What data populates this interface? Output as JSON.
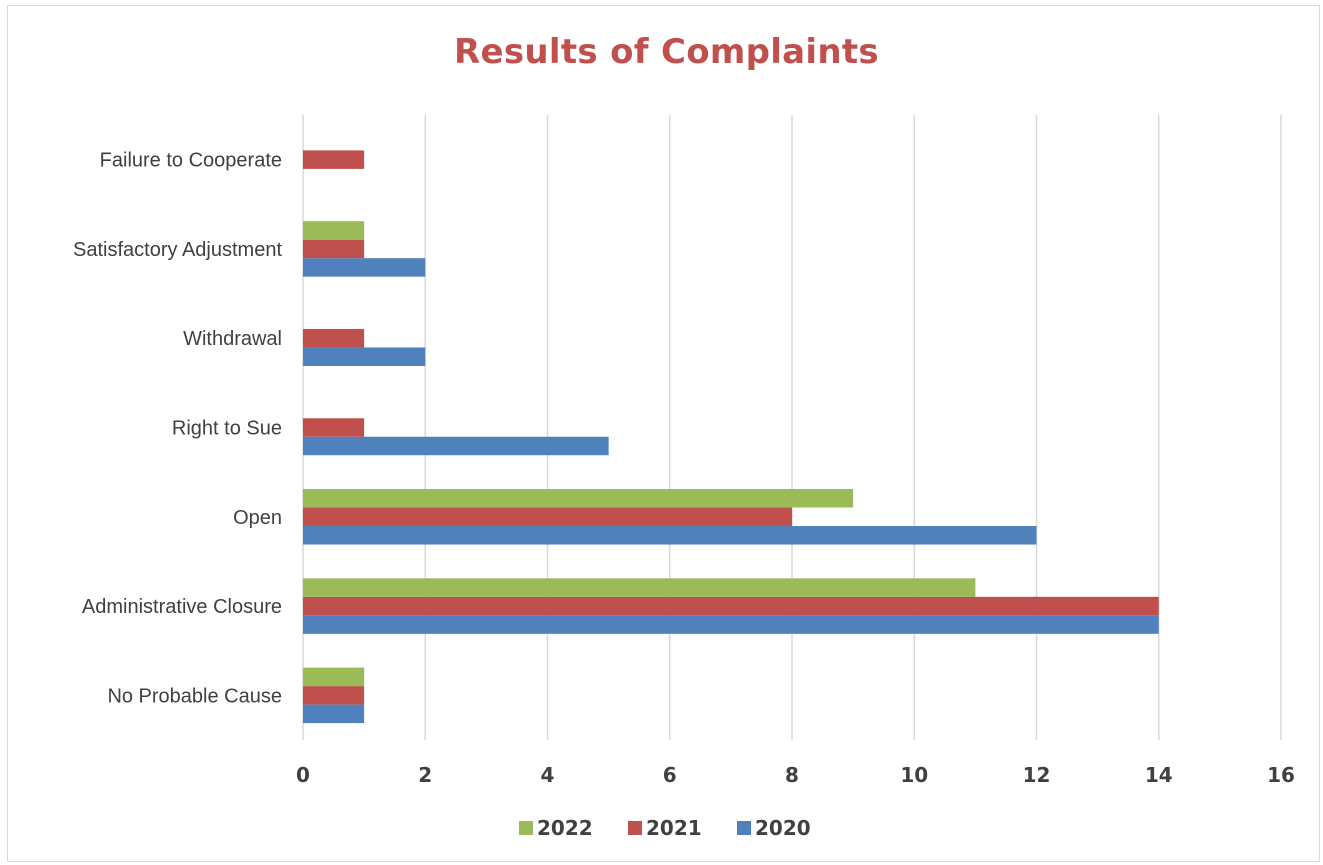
{
  "chart_data": {
    "type": "bar",
    "orientation": "horizontal",
    "title": "Results of Complaints",
    "categories": [
      "No Probable Cause",
      "Administrative Closure",
      "Open",
      "Right to Sue",
      "Withdrawal",
      "Satisfactory Adjustment",
      "Failure to Cooperate"
    ],
    "series": [
      {
        "name": "2020",
        "color": "#4f81bd",
        "values": [
          1,
          14,
          12,
          5,
          2,
          2,
          null
        ]
      },
      {
        "name": "2021",
        "color": "#c0504d",
        "values": [
          1,
          14,
          8,
          1,
          1,
          1,
          1
        ]
      },
      {
        "name": "2022",
        "color": "#9bbb59",
        "values": [
          1,
          11,
          9,
          null,
          null,
          1,
          null
        ]
      }
    ],
    "xlim": [
      0,
      16
    ],
    "xticks": [
      "0",
      "2",
      "4",
      "6",
      "8",
      "10",
      "12",
      "14",
      "16"
    ],
    "grid": true,
    "legend_position": "bottom",
    "legend_order": [
      "2022",
      "2021",
      "2020"
    ]
  }
}
